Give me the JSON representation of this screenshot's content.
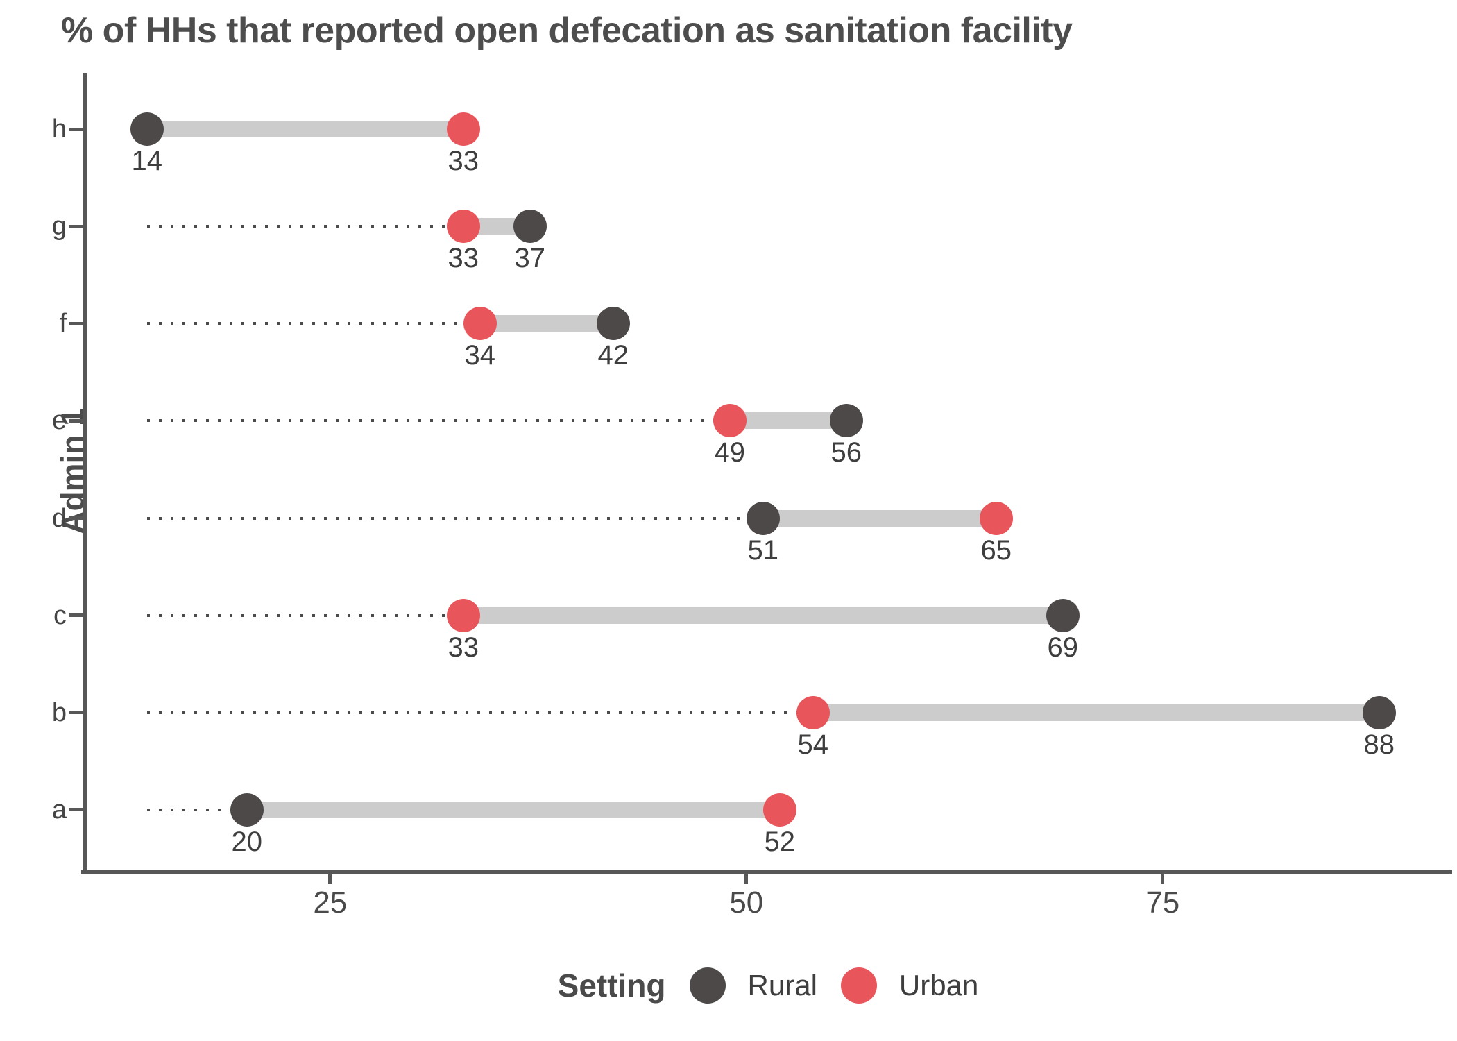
{
  "chart_data": {
    "type": "dumbbell",
    "title": "% of HHs that reported open defecation as sanitation facility",
    "ylabel": "Admin 1",
    "xlabel": "",
    "x_ticks": [
      25,
      50,
      75
    ],
    "xlim": [
      10.3,
      92.3
    ],
    "leader_start_value": 14,
    "grid": "off",
    "legend_position": "bottom",
    "categories": [
      "h",
      "g",
      "f",
      "e",
      "d",
      "c",
      "b",
      "a"
    ],
    "series": [
      {
        "name": "Rural",
        "values": [
          14,
          37,
          42,
          56,
          51,
          69,
          88,
          20
        ]
      },
      {
        "name": "Urban",
        "values": [
          33,
          33,
          34,
          49,
          65,
          33,
          54,
          52
        ]
      }
    ],
    "rows": [
      {
        "category": "h",
        "rural": 14,
        "urban": 33
      },
      {
        "category": "g",
        "rural": 37,
        "urban": 33
      },
      {
        "category": "f",
        "rural": 42,
        "urban": 34
      },
      {
        "category": "e",
        "rural": 56,
        "urban": 49
      },
      {
        "category": "d",
        "rural": 51,
        "urban": 65
      },
      {
        "category": "c",
        "rural": 69,
        "urban": 33
      },
      {
        "category": "b",
        "rural": 88,
        "urban": 54
      },
      {
        "category": "a",
        "rural": 20,
        "urban": 52
      }
    ]
  },
  "legend": {
    "title": "Setting",
    "items": [
      {
        "label": "Rural",
        "key": "rural"
      },
      {
        "label": "Urban",
        "key": "urban"
      }
    ]
  },
  "colors": {
    "rural": "#4d4949",
    "urban": "#e8555a",
    "bar": "#cccccc",
    "leader": "#4b4b4b",
    "axis": "#575757"
  }
}
